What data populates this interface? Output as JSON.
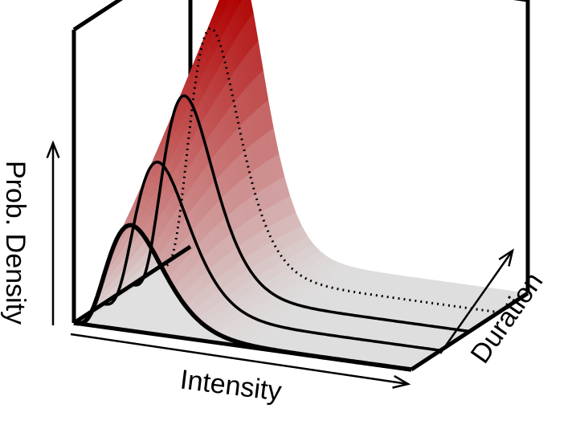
{
  "chart_data": {
    "type": "surface-3d",
    "title": "",
    "xlabel": "Intensity",
    "ylabel": "Duration",
    "zlabel": "Prob. Density",
    "grid": false,
    "legend": "none",
    "colors": {
      "peak": "#b00000",
      "base": "#dedede",
      "box": "#000000",
      "floor": "#e0e0e0"
    },
    "series": [
      {
        "duration": 0.0,
        "peak_intensity": 0.17,
        "peak_density": 0.36,
        "style": "thick"
      },
      {
        "duration": 0.25,
        "peak_intensity": 0.17,
        "peak_density": 0.5,
        "style": "solid"
      },
      {
        "duration": 0.5,
        "peak_intensity": 0.16,
        "peak_density": 0.66,
        "style": "solid"
      },
      {
        "duration": 0.75,
        "peak_intensity": 0.15,
        "peak_density": 0.84,
        "style": "dotted"
      },
      {
        "duration": 1.0,
        "peak_intensity": 0.14,
        "peak_density": 1.0,
        "style": "none"
      }
    ]
  }
}
